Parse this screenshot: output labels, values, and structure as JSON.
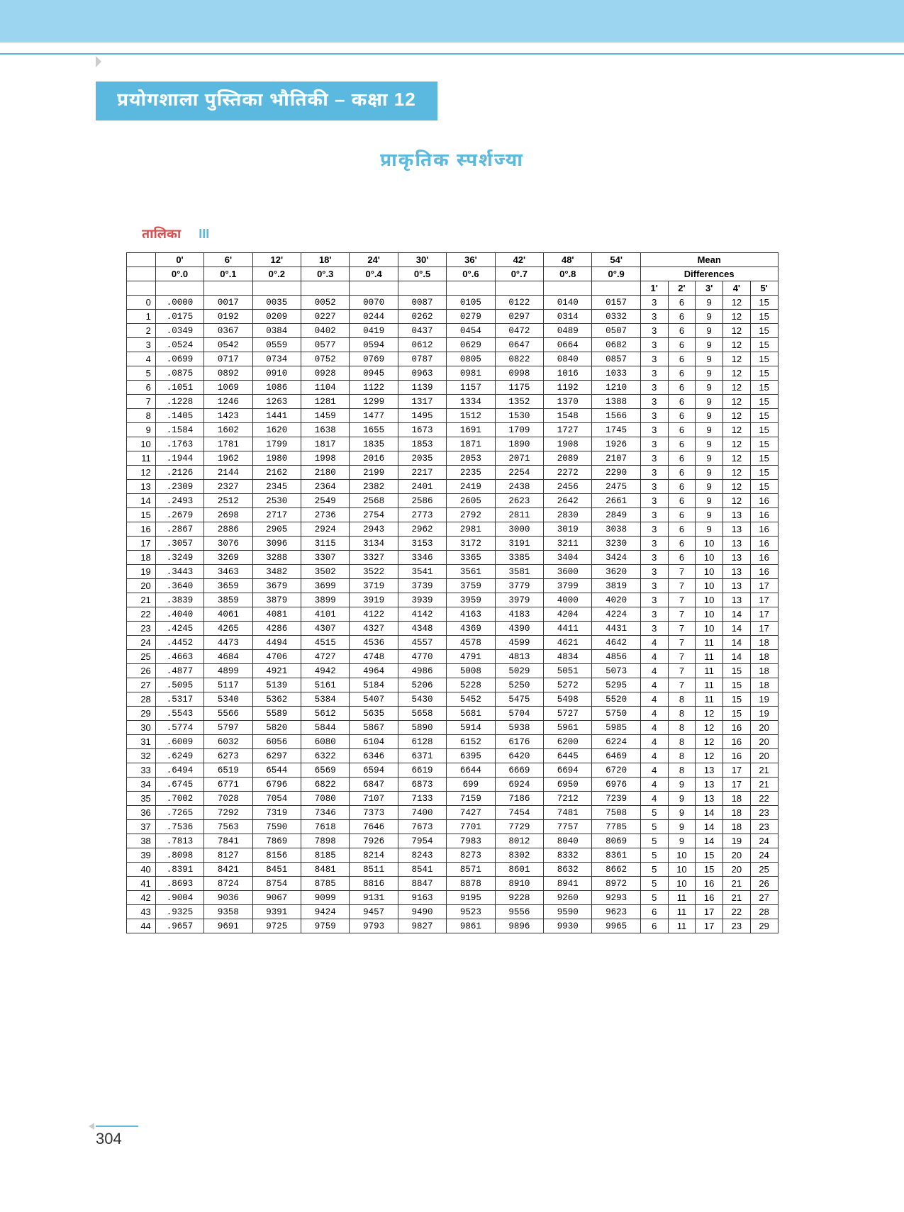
{
  "layout": {
    "top_band_color": "#9bd5f0",
    "accent_color": "#5bb9e0",
    "table_border_color": "#333333",
    "background_color": "#ffffff",
    "label_color_red": "#d94f4f",
    "font_family": "Arial, Helvetica, Noto Sans Devanagari, sans-serif",
    "table_font_family": "Courier New, monospace"
  },
  "chapter_title": "प्रयोगशाला पुस्तिका भौतिकी – कक्षा 12",
  "main_heading": "प्राकृतिक स्पर्शज्या",
  "table_label_red": "तालिका",
  "table_label_blue": "III",
  "page_number": "304",
  "table": {
    "type": "table",
    "header_minutes": [
      "0'",
      "6'",
      "12'",
      "18'",
      "24'",
      "30'",
      "36'",
      "42'",
      "48'",
      "54'"
    ],
    "header_decimals": [
      "0°.0",
      "0°.1",
      "0°.2",
      "0°.3",
      "0°.4",
      "0°.5",
      "0°.6",
      "0°.7",
      "0°.8",
      "0°.9"
    ],
    "mean_header": "Mean",
    "diff_header": "Differences",
    "diff_cols": [
      "1'",
      "2'",
      "3'",
      "4'",
      "5'"
    ],
    "rows": [
      {
        "deg": 0,
        "v": [
          ".0000",
          "0017",
          "0035",
          "0052",
          "0070",
          "0087",
          "0105",
          "0122",
          "0140",
          "0157"
        ],
        "d": [
          3,
          6,
          9,
          12,
          15
        ]
      },
      {
        "deg": 1,
        "v": [
          ".0175",
          "0192",
          "0209",
          "0227",
          "0244",
          "0262",
          "0279",
          "0297",
          "0314",
          "0332"
        ],
        "d": [
          3,
          6,
          9,
          12,
          15
        ]
      },
      {
        "deg": 2,
        "v": [
          ".0349",
          "0367",
          "0384",
          "0402",
          "0419",
          "0437",
          "0454",
          "0472",
          "0489",
          "0507"
        ],
        "d": [
          3,
          6,
          9,
          12,
          15
        ]
      },
      {
        "deg": 3,
        "v": [
          ".0524",
          "0542",
          "0559",
          "0577",
          "0594",
          "0612",
          "0629",
          "0647",
          "0664",
          "0682"
        ],
        "d": [
          3,
          6,
          9,
          12,
          15
        ]
      },
      {
        "deg": 4,
        "v": [
          ".0699",
          "0717",
          "0734",
          "0752",
          "0769",
          "0787",
          "0805",
          "0822",
          "0840",
          "0857"
        ],
        "d": [
          3,
          6,
          9,
          12,
          15
        ]
      },
      {
        "deg": 5,
        "v": [
          ".0875",
          "0892",
          "0910",
          "0928",
          "0945",
          "0963",
          "0981",
          "0998",
          "1016",
          "1033"
        ],
        "d": [
          3,
          6,
          9,
          12,
          15
        ]
      },
      {
        "deg": 6,
        "v": [
          ".1051",
          "1069",
          "1086",
          "1104",
          "1122",
          "1139",
          "1157",
          "1175",
          "1192",
          "1210"
        ],
        "d": [
          3,
          6,
          9,
          12,
          15
        ]
      },
      {
        "deg": 7,
        "v": [
          ".1228",
          "1246",
          "1263",
          "1281",
          "1299",
          "1317",
          "1334",
          "1352",
          "1370",
          "1388"
        ],
        "d": [
          3,
          6,
          9,
          12,
          15
        ]
      },
      {
        "deg": 8,
        "v": [
          ".1405",
          "1423",
          "1441",
          "1459",
          "1477",
          "1495",
          "1512",
          "1530",
          "1548",
          "1566"
        ],
        "d": [
          3,
          6,
          9,
          12,
          15
        ]
      },
      {
        "deg": 9,
        "v": [
          ".1584",
          "1602",
          "1620",
          "1638",
          "1655",
          "1673",
          "1691",
          "1709",
          "1727",
          "1745"
        ],
        "d": [
          3,
          6,
          9,
          12,
          15
        ]
      },
      {
        "deg": 10,
        "v": [
          ".1763",
          "1781",
          "1799",
          "1817",
          "1835",
          "1853",
          "1871",
          "1890",
          "1908",
          "1926"
        ],
        "d": [
          3,
          6,
          9,
          12,
          15
        ]
      },
      {
        "deg": 11,
        "v": [
          ".1944",
          "1962",
          "1980",
          "1998",
          "2016",
          "2035",
          "2053",
          "2071",
          "2089",
          "2107"
        ],
        "d": [
          3,
          6,
          9,
          12,
          15
        ]
      },
      {
        "deg": 12,
        "v": [
          ".2126",
          "2144",
          "2162",
          "2180",
          "2199",
          "2217",
          "2235",
          "2254",
          "2272",
          "2290"
        ],
        "d": [
          3,
          6,
          9,
          12,
          15
        ]
      },
      {
        "deg": 13,
        "v": [
          ".2309",
          "2327",
          "2345",
          "2364",
          "2382",
          "2401",
          "2419",
          "2438",
          "2456",
          "2475"
        ],
        "d": [
          3,
          6,
          9,
          12,
          15
        ]
      },
      {
        "deg": 14,
        "v": [
          ".2493",
          "2512",
          "2530",
          "2549",
          "2568",
          "2586",
          "2605",
          "2623",
          "2642",
          "2661"
        ],
        "d": [
          3,
          6,
          9,
          12,
          16
        ]
      },
      {
        "deg": 15,
        "v": [
          ".2679",
          "2698",
          "2717",
          "2736",
          "2754",
          "2773",
          "2792",
          "2811",
          "2830",
          "2849"
        ],
        "d": [
          3,
          6,
          9,
          13,
          16
        ]
      },
      {
        "deg": 16,
        "v": [
          ".2867",
          "2886",
          "2905",
          "2924",
          "2943",
          "2962",
          "2981",
          "3000",
          "3019",
          "3038"
        ],
        "d": [
          3,
          6,
          9,
          13,
          16
        ]
      },
      {
        "deg": 17,
        "v": [
          ".3057",
          "3076",
          "3096",
          "3115",
          "3134",
          "3153",
          "3172",
          "3191",
          "3211",
          "3230"
        ],
        "d": [
          3,
          6,
          10,
          13,
          16
        ]
      },
      {
        "deg": 18,
        "v": [
          ".3249",
          "3269",
          "3288",
          "3307",
          "3327",
          "3346",
          "3365",
          "3385",
          "3404",
          "3424"
        ],
        "d": [
          3,
          6,
          10,
          13,
          16
        ]
      },
      {
        "deg": 19,
        "v": [
          ".3443",
          "3463",
          "3482",
          "3502",
          "3522",
          "3541",
          "3561",
          "3581",
          "3600",
          "3620"
        ],
        "d": [
          3,
          7,
          10,
          13,
          16
        ]
      },
      {
        "deg": 20,
        "v": [
          ".3640",
          "3659",
          "3679",
          "3699",
          "3719",
          "3739",
          "3759",
          "3779",
          "3799",
          "3819"
        ],
        "d": [
          3,
          7,
          10,
          13,
          17
        ]
      },
      {
        "deg": 21,
        "v": [
          ".3839",
          "3859",
          "3879",
          "3899",
          "3919",
          "3939",
          "3959",
          "3979",
          "4000",
          "4020"
        ],
        "d": [
          3,
          7,
          10,
          13,
          17
        ]
      },
      {
        "deg": 22,
        "v": [
          ".4040",
          "4061",
          "4081",
          "4101",
          "4122",
          "4142",
          "4163",
          "4183",
          "4204",
          "4224"
        ],
        "d": [
          3,
          7,
          10,
          14,
          17
        ]
      },
      {
        "deg": 23,
        "v": [
          ".4245",
          "4265",
          "4286",
          "4307",
          "4327",
          "4348",
          "4369",
          "4390",
          "4411",
          "4431"
        ],
        "d": [
          3,
          7,
          10,
          14,
          17
        ]
      },
      {
        "deg": 24,
        "v": [
          ".4452",
          "4473",
          "4494",
          "4515",
          "4536",
          "4557",
          "4578",
          "4599",
          "4621",
          "4642"
        ],
        "d": [
          4,
          7,
          11,
          14,
          18
        ]
      },
      {
        "deg": 25,
        "v": [
          ".4663",
          "4684",
          "4706",
          "4727",
          "4748",
          "4770",
          "4791",
          "4813",
          "4834",
          "4856"
        ],
        "d": [
          4,
          7,
          11,
          14,
          18
        ]
      },
      {
        "deg": 26,
        "v": [
          ".4877",
          "4899",
          "4921",
          "4942",
          "4964",
          "4986",
          "5008",
          "5029",
          "5051",
          "5073"
        ],
        "d": [
          4,
          7,
          11,
          15,
          18
        ]
      },
      {
        "deg": 27,
        "v": [
          ".5095",
          "5117",
          "5139",
          "5161",
          "5184",
          "5206",
          "5228",
          "5250",
          "5272",
          "5295"
        ],
        "d": [
          4,
          7,
          11,
          15,
          18
        ]
      },
      {
        "deg": 28,
        "v": [
          ".5317",
          "5340",
          "5362",
          "5384",
          "5407",
          "5430",
          "5452",
          "5475",
          "5498",
          "5520"
        ],
        "d": [
          4,
          8,
          11,
          15,
          19
        ]
      },
      {
        "deg": 29,
        "v": [
          ".5543",
          "5566",
          "5589",
          "5612",
          "5635",
          "5658",
          "5681",
          "5704",
          "5727",
          "5750"
        ],
        "d": [
          4,
          8,
          12,
          15,
          19
        ]
      },
      {
        "deg": 30,
        "v": [
          ".5774",
          "5797",
          "5820",
          "5844",
          "5867",
          "5890",
          "5914",
          "5938",
          "5961",
          "5985"
        ],
        "d": [
          4,
          8,
          12,
          16,
          20
        ]
      },
      {
        "deg": 31,
        "v": [
          ".6009",
          "6032",
          "6056",
          "6080",
          "6104",
          "6128",
          "6152",
          "6176",
          "6200",
          "6224"
        ],
        "d": [
          4,
          8,
          12,
          16,
          20
        ]
      },
      {
        "deg": 32,
        "v": [
          ".6249",
          "6273",
          "6297",
          "6322",
          "6346",
          "6371",
          "6395",
          "6420",
          "6445",
          "6469"
        ],
        "d": [
          4,
          8,
          12,
          16,
          20
        ]
      },
      {
        "deg": 33,
        "v": [
          ".6494",
          "6519",
          "6544",
          "6569",
          "6594",
          "6619",
          "6644",
          "6669",
          "6694",
          "6720"
        ],
        "d": [
          4,
          8,
          13,
          17,
          21
        ]
      },
      {
        "deg": 34,
        "v": [
          ".6745",
          "6771",
          "6796",
          "6822",
          "6847",
          "6873",
          "699",
          "6924",
          "6950",
          "6976"
        ],
        "d": [
          4,
          9,
          13,
          17,
          21
        ]
      },
      {
        "deg": 35,
        "v": [
          ".7002",
          "7028",
          "7054",
          "7080",
          "7107",
          "7133",
          "7159",
          "7186",
          "7212",
          "7239"
        ],
        "d": [
          4,
          9,
          13,
          18,
          22
        ]
      },
      {
        "deg": 36,
        "v": [
          ".7265",
          "7292",
          "7319",
          "7346",
          "7373",
          "7400",
          "7427",
          "7454",
          "7481",
          "7508"
        ],
        "d": [
          5,
          9,
          14,
          18,
          23
        ]
      },
      {
        "deg": 37,
        "v": [
          ".7536",
          "7563",
          "7590",
          "7618",
          "7646",
          "7673",
          "7701",
          "7729",
          "7757",
          "7785"
        ],
        "d": [
          5,
          9,
          14,
          18,
          23
        ]
      },
      {
        "deg": 38,
        "v": [
          ".7813",
          "7841",
          "7869",
          "7898",
          "7926",
          "7954",
          "7983",
          "8012",
          "8040",
          "8069"
        ],
        "d": [
          5,
          9,
          14,
          19,
          24
        ]
      },
      {
        "deg": 39,
        "v": [
          ".8098",
          "8127",
          "8156",
          "8185",
          "8214",
          "8243",
          "8273",
          "8302",
          "8332",
          "8361"
        ],
        "d": [
          5,
          10,
          15,
          20,
          24
        ]
      },
      {
        "deg": 40,
        "v": [
          ".8391",
          "8421",
          "8451",
          "8481",
          "8511",
          "8541",
          "8571",
          "8601",
          "8632",
          "8662"
        ],
        "d": [
          5,
          10,
          15,
          20,
          25
        ]
      },
      {
        "deg": 41,
        "v": [
          ".8693",
          "8724",
          "8754",
          "8785",
          "8816",
          "8847",
          "8878",
          "8910",
          "8941",
          "8972"
        ],
        "d": [
          5,
          10,
          16,
          21,
          26
        ]
      },
      {
        "deg": 42,
        "v": [
          ".9004",
          "9036",
          "9067",
          "9099",
          "9131",
          "9163",
          "9195",
          "9228",
          "9260",
          "9293"
        ],
        "d": [
          5,
          11,
          16,
          21,
          27
        ]
      },
      {
        "deg": 43,
        "v": [
          ".9325",
          "9358",
          "9391",
          "9424",
          "9457",
          "9490",
          "9523",
          "9556",
          "9590",
          "9623"
        ],
        "d": [
          6,
          11,
          17,
          22,
          28
        ]
      },
      {
        "deg": 44,
        "v": [
          ".9657",
          "9691",
          "9725",
          "9759",
          "9793",
          "9827",
          "9861",
          "9896",
          "9930",
          "9965"
        ],
        "d": [
          6,
          11,
          17,
          23,
          29
        ]
      }
    ]
  }
}
